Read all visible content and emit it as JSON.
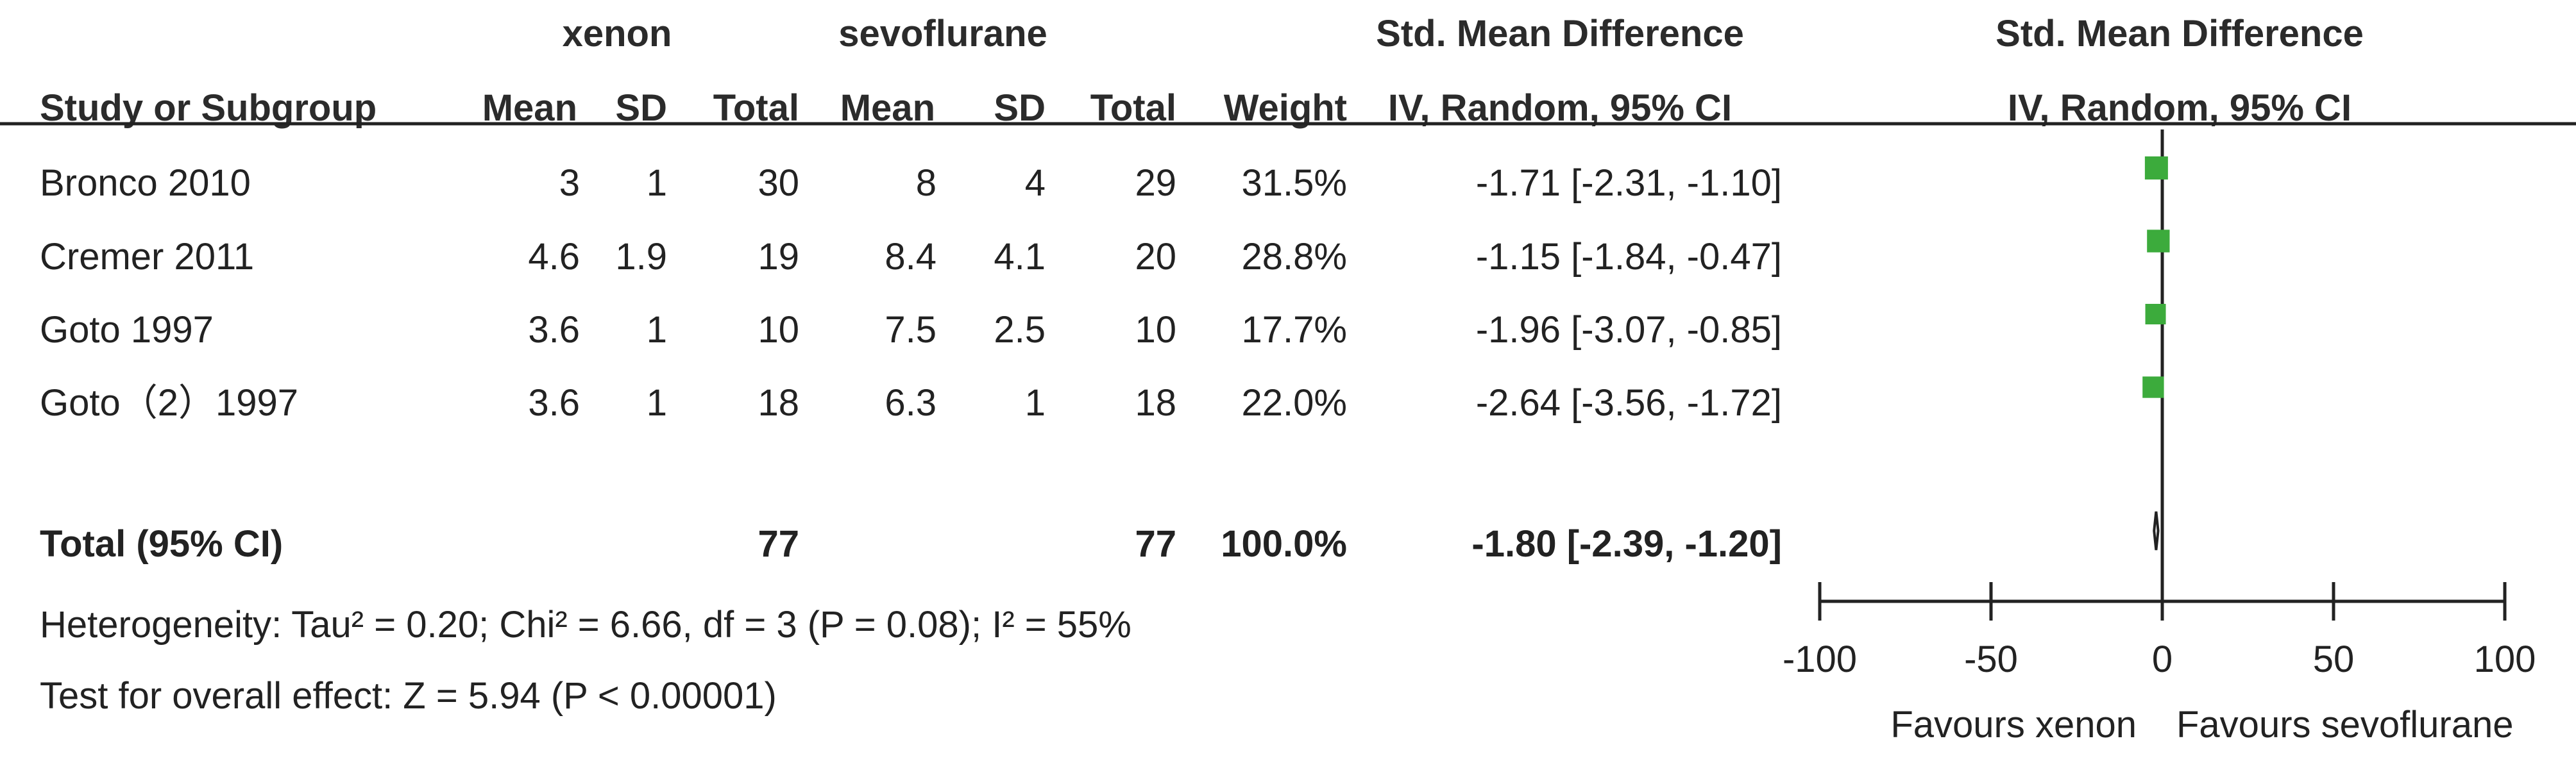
{
  "headers": {
    "group1": "xenon",
    "group2": "sevoflurane",
    "effect_title": "Std. Mean Difference",
    "effect_method": "IV, Random, 95% CI",
    "plot_title": "Std. Mean Difference",
    "plot_method": "IV, Random, 95% CI",
    "study": "Study or Subgroup",
    "mean1": "Mean",
    "sd1": "SD",
    "total1": "Total",
    "mean2": "Mean",
    "sd2": "SD",
    "total2": "Total",
    "weight": "Weight"
  },
  "studies": [
    {
      "name": "Bronco 2010",
      "mean1": "3",
      "sd1": "1",
      "total1": "30",
      "mean2": "8",
      "sd2": "4",
      "total2": "29",
      "weight": "31.5%",
      "ci_text": "-1.71 [-2.31, -1.10]",
      "smd": -1.71,
      "lo": -2.31,
      "hi": -1.1,
      "w": 31.5
    },
    {
      "name": "Cremer 2011",
      "mean1": "4.6",
      "sd1": "1.9",
      "total1": "19",
      "mean2": "8.4",
      "sd2": "4.1",
      "total2": "20",
      "weight": "28.8%",
      "ci_text": "-1.15 [-1.84, -0.47]",
      "smd": -1.15,
      "lo": -1.84,
      "hi": -0.47,
      "w": 28.8
    },
    {
      "name": "Goto 1997",
      "mean1": "3.6",
      "sd1": "1",
      "total1": "10",
      "mean2": "7.5",
      "sd2": "2.5",
      "total2": "10",
      "weight": "17.7%",
      "ci_text": "-1.96 [-3.07, -0.85]",
      "smd": -1.96,
      "lo": -3.07,
      "hi": -0.85,
      "w": 17.7
    },
    {
      "name": "Goto（2）1997",
      "mean1": "3.6",
      "sd1": "1",
      "total1": "18",
      "mean2": "6.3",
      "sd2": "1",
      "total2": "18",
      "weight": "22.0%",
      "ci_text": "-2.64 [-3.56, -1.72]",
      "smd": -2.64,
      "lo": -3.56,
      "hi": -1.72,
      "w": 22.0
    }
  ],
  "total": {
    "label": "Total (95% CI)",
    "total1": "77",
    "total2": "77",
    "weight": "100.0%",
    "ci_text": "-1.80 [-2.39, -1.20]",
    "smd": -1.8,
    "lo": -2.39,
    "hi": -1.2
  },
  "footer": {
    "heterogeneity": "Heterogeneity: Tau² = 0.20; Chi² = 6.66, df = 3 (P = 0.08); I² = 55%",
    "overall": "Test for overall effect: Z = 5.94 (P < 0.00001)"
  },
  "chart_data": {
    "type": "scatter",
    "subtype": "forest-plot",
    "title": "Std. Mean Difference",
    "subtitle": "IV, Random, 95% CI",
    "xlim": [
      -100,
      100
    ],
    "xticks": [
      -100,
      -50,
      0,
      50,
      100
    ],
    "tick_labels": [
      "-100",
      "-50",
      "0",
      "50",
      "100"
    ],
    "favours_left": "Favours xenon",
    "favours_right": "Favours sevoflurane",
    "colors": {
      "marker": "#3cab3c",
      "axis": "#222222"
    },
    "points": [
      {
        "study": "Bronco 2010",
        "smd": -1.71,
        "lo": -2.31,
        "hi": -1.1,
        "weight": 31.5
      },
      {
        "study": "Cremer 2011",
        "smd": -1.15,
        "lo": -1.84,
        "hi": -0.47,
        "weight": 28.8
      },
      {
        "study": "Goto 1997",
        "smd": -1.96,
        "lo": -3.07,
        "hi": -0.85,
        "weight": 17.7
      },
      {
        "study": "Goto（2）1997",
        "smd": -2.64,
        "lo": -3.56,
        "hi": -1.72,
        "weight": 22.0
      }
    ],
    "pooled": {
      "smd": -1.8,
      "lo": -2.39,
      "hi": -1.2
    }
  }
}
